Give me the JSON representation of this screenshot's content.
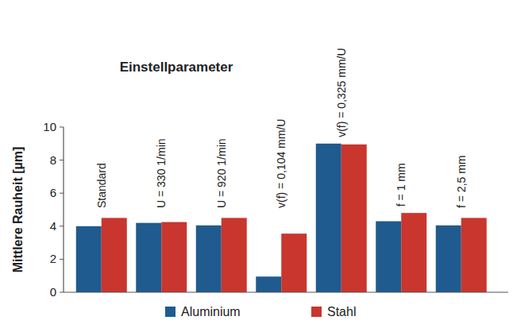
{
  "chart_data": {
    "type": "bar",
    "title": "Einstellparameter",
    "y_label": "Mittlere Rauheit [µm]",
    "categories": [
      "Standard",
      "U = 330 1/min",
      "U = 920 1/min",
      "v(f) = 0,104 mm/U",
      "v(f) = 0,325 mm/U",
      "f = 1 mm",
      "f = 2,5 mm"
    ],
    "series": [
      {
        "name": "Aluminium",
        "color": "#1f5b8f",
        "values": [
          4.0,
          4.2,
          4.05,
          0.95,
          9.0,
          4.3,
          4.05
        ]
      },
      {
        "name": "Stahl",
        "color": "#c9362d",
        "values": [
          4.5,
          4.25,
          4.5,
          3.55,
          8.95,
          4.8,
          4.5
        ]
      }
    ],
    "ylim": [
      0,
      10
    ],
    "yticks": [
      0,
      2,
      4,
      6,
      8,
      10
    ],
    "grid": false,
    "legend": "bottom"
  }
}
